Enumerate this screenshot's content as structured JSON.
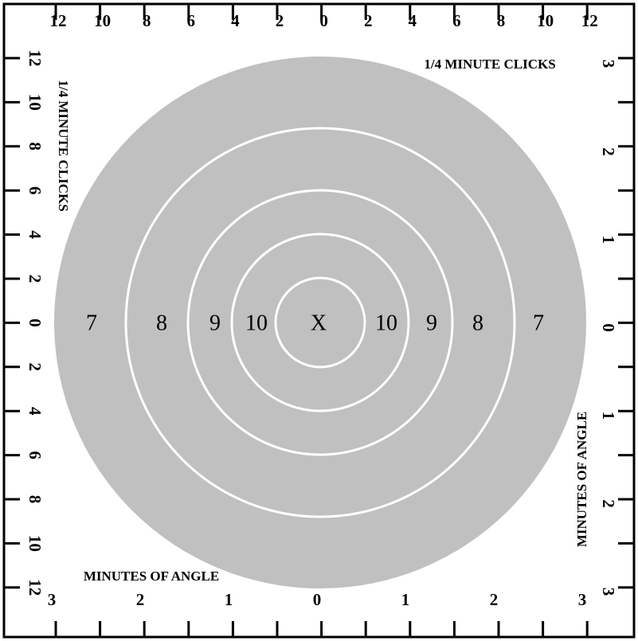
{
  "target": {
    "top_scale": [
      "12",
      "10",
      "8",
      "6",
      "4",
      "2",
      "0",
      "2",
      "4",
      "6",
      "8",
      "10",
      "12"
    ],
    "left_scale": [
      "12",
      "10",
      "8",
      "6",
      "4",
      "2",
      "0",
      "2",
      "4",
      "6",
      "8",
      "10",
      "12"
    ],
    "right_scale": [
      "3",
      "2",
      "1",
      "0",
      "1",
      "2",
      "3"
    ],
    "bottom_scale": [
      "3",
      "2",
      "1",
      "0",
      "1",
      "2",
      "3"
    ],
    "top_title": "1/4 MINUTE CLICKS",
    "left_title": "1/4 MINUTE CLICKS",
    "bottom_title": "MINUTES OF ANGLE",
    "right_title": "MINUTES OF ANGLE",
    "ring_labels": [
      "7",
      "8",
      "9",
      "10",
      "X",
      "10",
      "9",
      "8",
      "7"
    ]
  }
}
